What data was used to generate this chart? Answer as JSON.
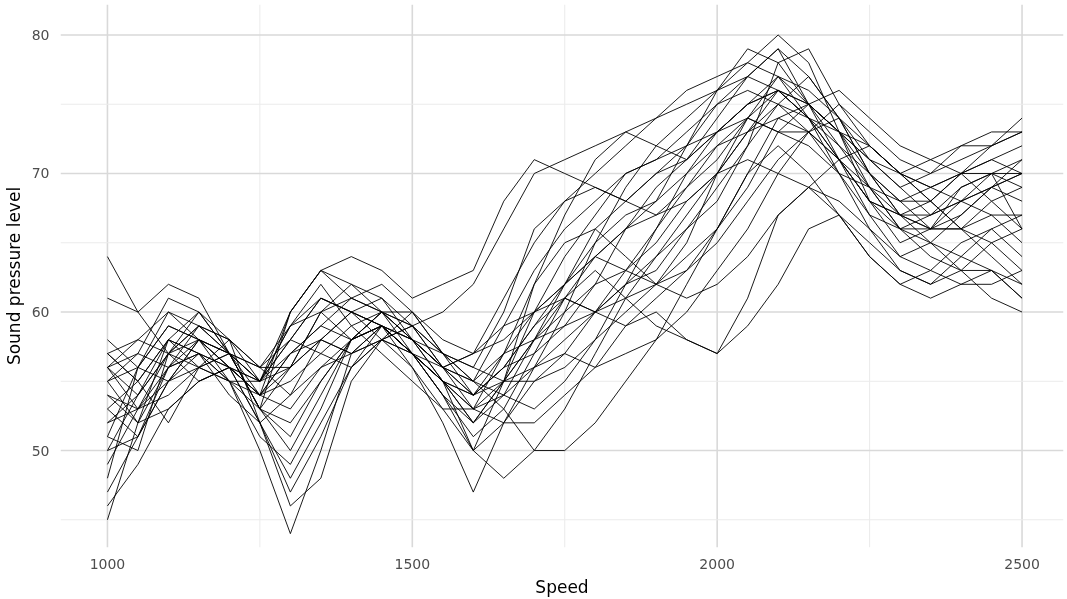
{
  "chart_data": {
    "type": "line",
    "xlabel": "Speed",
    "ylabel": "Sound pressure level",
    "x": [
      1000,
      1050,
      1100,
      1150,
      1200,
      1250,
      1300,
      1350,
      1400,
      1450,
      1500,
      1550,
      1600,
      1650,
      1700,
      1750,
      1800,
      1850,
      1900,
      1950,
      2000,
      2050,
      2100,
      2150,
      2200,
      2250,
      2300,
      2350,
      2400,
      2450,
      2500
    ],
    "xlim": [
      923,
      2568
    ],
    "ylim": [
      43,
      82.2
    ],
    "xticks": [
      1000,
      {
        "value": 1250,
        "label": null
      },
      1500,
      {
        "value": 1750,
        "label": null
      },
      2000,
      {
        "value": 2250,
        "label": null
      },
      2500
    ],
    "yticks": [
      {
        "value": 45,
        "label": null
      },
      50,
      {
        "value": 55,
        "label": null
      },
      60,
      {
        "value": 65,
        "label": null
      },
      70,
      {
        "value": 75,
        "label": null
      },
      80
    ],
    "grid": true,
    "series": [
      {
        "color": "#000000",
        "values": [
          64,
          60,
          57,
          58,
          57,
          55,
          59,
          60,
          58,
          59,
          57,
          54,
          52,
          55,
          58,
          60,
          62,
          63,
          65,
          68,
          70,
          73,
          75,
          74,
          72,
          70,
          68,
          66,
          67,
          69,
          70
        ]
      },
      {
        "color": "#000000",
        "values": [
          45,
          52,
          58,
          56,
          55,
          50,
          44,
          50,
          57,
          59,
          56,
          52,
          47,
          52,
          55,
          57,
          60,
          62,
          63,
          66,
          68,
          72,
          78,
          79,
          75,
          72,
          70,
          68,
          66,
          64,
          62
        ]
      },
      {
        "color": "#000000",
        "values": [
          61,
          60,
          62,
          61,
          57,
          53,
          60,
          63,
          64,
          63,
          61,
          62,
          63,
          68,
          71,
          70,
          69,
          68,
          70,
          72,
          75,
          77,
          79,
          77,
          74,
          71,
          69,
          70,
          72,
          73,
          73
        ]
      },
      {
        "color": "#000000",
        "values": [
          51,
          50,
          57,
          60,
          58,
          52,
          46,
          48,
          55,
          58,
          60,
          57,
          56,
          60,
          66,
          68,
          70,
          72,
          74,
          76,
          77,
          78,
          80,
          78,
          73,
          68,
          65,
          66,
          69,
          70,
          71
        ]
      },
      {
        "color": "#000000",
        "values": [
          57,
          55,
          52,
          56,
          58,
          55,
          58,
          61,
          60,
          58,
          56,
          53,
          50,
          55,
          62,
          67,
          71,
          73,
          72,
          71,
          73,
          75,
          76,
          74,
          70,
          66,
          63,
          62,
          64,
          66,
          67
        ]
      },
      {
        "color": "#000000",
        "values": [
          48,
          56,
          60,
          58,
          55,
          51,
          49,
          53,
          58,
          60,
          59,
          56,
          54,
          57,
          60,
          62,
          64,
          66,
          68,
          72,
          76,
          79,
          78,
          75,
          73,
          71,
          69,
          67,
          68,
          70,
          69
        ]
      },
      {
        "color": "#000000",
        "values": [
          54,
          53,
          55,
          57,
          56,
          54,
          57,
          58,
          57,
          59,
          58,
          56,
          57,
          59,
          60,
          61,
          60,
          61,
          62,
          64,
          66,
          69,
          73,
          75,
          76,
          74,
          72,
          71,
          70,
          68,
          66
        ]
      },
      {
        "color": "#000000",
        "values": [
          56,
          57,
          61,
          60,
          57,
          53,
          52,
          55,
          58,
          59,
          57,
          55,
          54,
          56,
          57,
          59,
          62,
          66,
          69,
          71,
          74,
          77,
          79,
          75,
          71,
          68,
          66,
          67,
          69,
          70,
          66
        ]
      },
      {
        "color": "#000000",
        "values": [
          50,
          51,
          56,
          59,
          57,
          55,
          60,
          63,
          62,
          60,
          58,
          57,
          56,
          55,
          55,
          56,
          58,
          60,
          62,
          65,
          70,
          74,
          77,
          76,
          74,
          70,
          67,
          65,
          63,
          61,
          60
        ]
      },
      {
        "color": "#000000",
        "values": [
          46,
          49,
          53,
          55,
          56,
          52,
          48,
          52,
          56,
          58,
          59,
          57,
          55,
          53,
          50,
          50,
          52,
          55,
          58,
          62,
          66,
          70,
          74,
          75,
          73,
          69,
          66,
          65,
          64,
          63,
          62
        ]
      },
      {
        "color": "#000000",
        "values": [
          57,
          55,
          58,
          57,
          54,
          52,
          54,
          58,
          60,
          59,
          57,
          55,
          53,
          57,
          62,
          65,
          66,
          64,
          62,
          63,
          66,
          70,
          72,
          70,
          67,
          64,
          62,
          63,
          65,
          66,
          64
        ]
      },
      {
        "color": "#000000",
        "values": [
          53,
          51,
          55,
          58,
          57,
          56,
          58,
          57,
          56,
          58,
          59,
          60,
          62,
          66,
          70,
          71,
          72,
          73,
          74,
          75,
          76,
          77,
          76,
          74,
          73,
          70,
          68,
          68,
          70,
          72,
          73
        ]
      },
      {
        "color": "#000000",
        "values": [
          55,
          52,
          56,
          57,
          55,
          53,
          56,
          60,
          61,
          60,
          57,
          54,
          51,
          53,
          57,
          61,
          64,
          66,
          67,
          68,
          70,
          71,
          70,
          69,
          68,
          66,
          64,
          65,
          67,
          69,
          71
        ]
      },
      {
        "color": "#000000",
        "values": [
          51,
          56,
          59,
          58,
          56,
          55,
          59,
          62,
          59,
          57,
          55,
          53,
          53,
          55,
          58,
          61,
          63,
          61,
          59,
          58,
          57,
          59,
          62,
          66,
          67,
          65,
          63,
          62,
          63,
          65,
          66
        ]
      },
      {
        "color": "#000000",
        "values": [
          52,
          53,
          54,
          56,
          57,
          54,
          53,
          56,
          57,
          58,
          57,
          55,
          53,
          54,
          56,
          58,
          60,
          63,
          66,
          69,
          71,
          74,
          76,
          75,
          73,
          72,
          70,
          68,
          66,
          65,
          63
        ]
      },
      {
        "color": "#000000",
        "values": [
          56,
          58,
          57,
          55,
          56,
          55,
          57,
          59,
          61,
          62,
          60,
          57,
          54,
          56,
          59,
          61,
          60,
          59,
          60,
          58,
          57,
          61,
          67,
          69,
          67,
          64,
          62,
          61,
          62,
          63,
          61
        ]
      },
      {
        "color": "#000000",
        "values": [
          50,
          54,
          57,
          59,
          58,
          56,
          56,
          58,
          60,
          61,
          59,
          57,
          55,
          54,
          53,
          55,
          58,
          62,
          66,
          70,
          73,
          75,
          77,
          75,
          73,
          71,
          70,
          71,
          72,
          72,
          74
        ]
      },
      {
        "color": "#000000",
        "values": [
          55,
          56,
          59,
          58,
          56,
          54,
          55,
          57,
          59,
          60,
          58,
          56,
          57,
          61,
          65,
          68,
          69,
          68,
          67,
          69,
          72,
          74,
          73,
          73,
          71,
          68,
          67,
          68,
          70,
          71,
          72
        ]
      },
      {
        "color": "#000000",
        "values": [
          47,
          51,
          55,
          58,
          57,
          53,
          50,
          54,
          58,
          60,
          59,
          56,
          53,
          52,
          52,
          54,
          56,
          59,
          61,
          63,
          65,
          68,
          71,
          73,
          74,
          72,
          70,
          69,
          68,
          67,
          65
        ]
      },
      {
        "color": "#000000",
        "values": [
          56,
          53,
          57,
          56,
          55,
          55,
          58,
          61,
          60,
          59,
          57,
          55,
          52,
          55,
          60,
          64,
          67,
          70,
          71,
          73,
          75,
          76,
          75,
          73,
          70,
          67,
          66,
          66,
          68,
          69,
          70
        ]
      },
      {
        "color": "#000000",
        "values": [
          58,
          56,
          55,
          56,
          57,
          56,
          54,
          56,
          58,
          60,
          60,
          58,
          57,
          58,
          60,
          62,
          64,
          63,
          62,
          61,
          62,
          64,
          67,
          69,
          71,
          72,
          70,
          69,
          70,
          71,
          70
        ]
      },
      {
        "color": "#000000",
        "values": [
          53,
          55,
          58,
          60,
          57,
          53,
          51,
          55,
          58,
          59,
          58,
          56,
          55,
          57,
          58,
          59,
          60,
          62,
          64,
          66,
          69,
          72,
          75,
          77,
          74,
          70,
          67,
          66,
          66,
          68,
          69
        ]
      },
      {
        "color": "#000000",
        "values": [
          54,
          52,
          53,
          55,
          56,
          54,
          57,
          59,
          58,
          59,
          57,
          54,
          50,
          52,
          56,
          60,
          65,
          69,
          72,
          74,
          76,
          78,
          77,
          74,
          71,
          68,
          67,
          67,
          68,
          69,
          68
        ]
      },
      {
        "color": "#000000",
        "values": [
          57,
          58,
          60,
          59,
          57,
          55,
          56,
          58,
          57,
          58,
          57,
          55,
          54,
          55,
          56,
          57,
          56,
          57,
          58,
          60,
          63,
          66,
          70,
          73,
          75,
          73,
          71,
          70,
          71,
          72,
          73
        ]
      },
      {
        "color": "#000000",
        "values": [
          52,
          54,
          58,
          57,
          55,
          54,
          60,
          63,
          61,
          60,
          58,
          55,
          52,
          54,
          58,
          62,
          66,
          68,
          70,
          71,
          73,
          75,
          76,
          74,
          71,
          67,
          64,
          63,
          62,
          62,
          63
        ]
      },
      {
        "color": "#000000",
        "values": [
          49,
          53,
          56,
          57,
          56,
          52,
          47,
          51,
          56,
          59,
          58,
          55,
          50,
          48,
          50,
          53,
          57,
          61,
          64,
          67,
          70,
          73,
          76,
          75,
          72,
          69,
          66,
          64,
          63,
          63,
          61
        ]
      },
      {
        "color": "#000000",
        "values": [
          55,
          57,
          56,
          58,
          56,
          54,
          56,
          60,
          62,
          61,
          58,
          56,
          55,
          59,
          63,
          66,
          68,
          70,
          71,
          72,
          73,
          74,
          73,
          72,
          70,
          69,
          68,
          69,
          70,
          70,
          70
        ]
      },
      {
        "color": "#000000",
        "values": [
          56,
          54,
          57,
          59,
          58,
          56,
          59,
          61,
          60,
          59,
          57,
          56,
          54,
          56,
          59,
          62,
          65,
          67,
          68,
          70,
          72,
          73,
          74,
          73,
          71,
          69,
          67,
          66,
          66,
          67,
          67
        ]
      }
    ]
  }
}
